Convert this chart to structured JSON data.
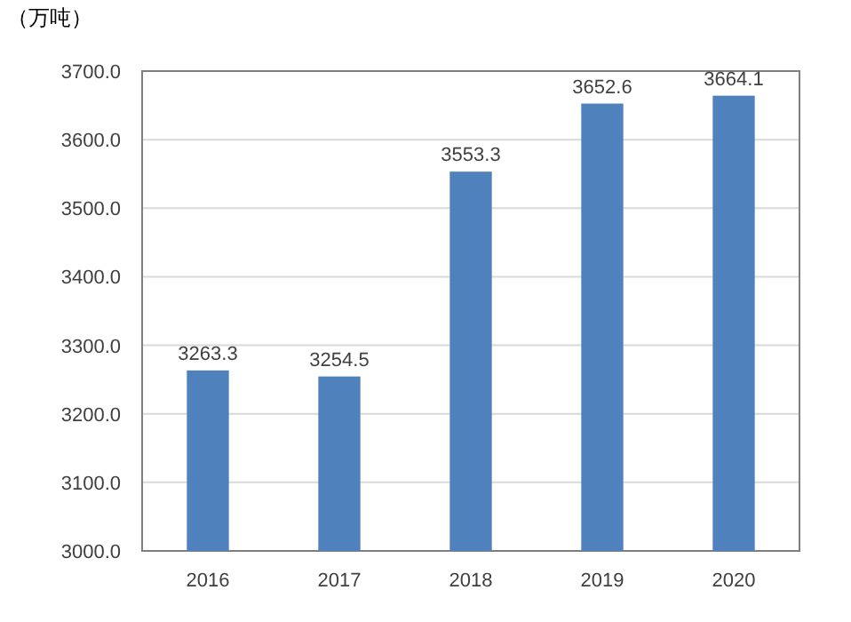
{
  "chart_data": {
    "type": "bar",
    "ylabel": "（万吨）",
    "categories": [
      "2016",
      "2017",
      "2018",
      "2019",
      "2020"
    ],
    "values": [
      3263.3,
      3254.5,
      3553.3,
      3652.6,
      3664.1
    ],
    "color": "#4f81bd",
    "ylim": [
      3000,
      3700
    ],
    "yticks": [
      {
        "value": 3000,
        "label": "3000.0"
      },
      {
        "value": 3100,
        "label": "3100.0"
      },
      {
        "value": 3200,
        "label": "3200.0"
      },
      {
        "value": 3300,
        "label": "3300.0"
      },
      {
        "value": 3400,
        "label": "3400.0"
      },
      {
        "value": 3500,
        "label": "3500.0"
      },
      {
        "value": 3600,
        "label": "3600.0"
      },
      {
        "value": 3700,
        "label": "3700.0"
      }
    ],
    "grid": "y",
    "data_labels": true
  }
}
